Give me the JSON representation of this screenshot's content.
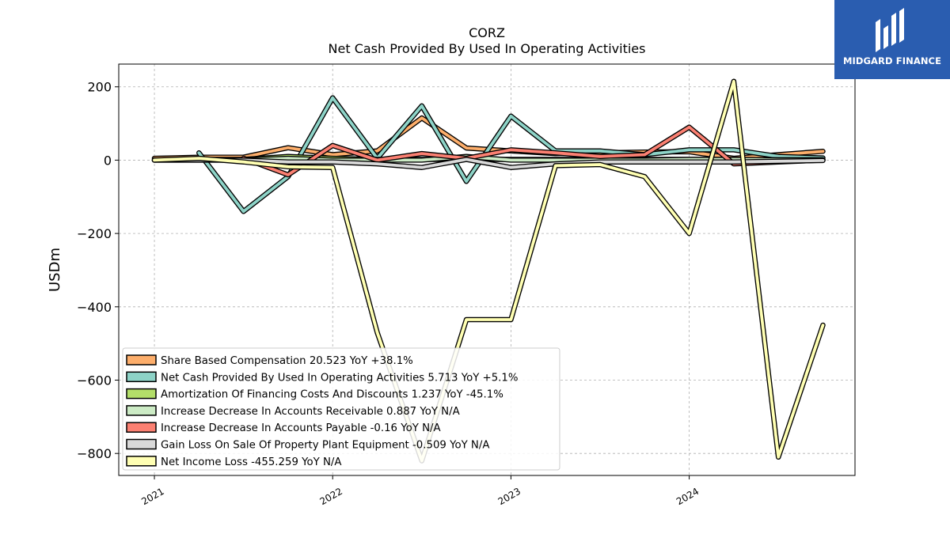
{
  "brand": {
    "name": "MIDGARD FINANCE",
    "bg_color": "#2a5db0"
  },
  "chart_data": {
    "type": "line",
    "title": "CORZ",
    "subtitle": "Net Cash Provided By Used In Operating Activities",
    "ylabel": "USDm",
    "xlabel": "",
    "ylim": [
      -860,
      262
    ],
    "xlim": [
      2020.8,
      2024.93
    ],
    "y_ticks": [
      200,
      0,
      -200,
      -400,
      -600,
      -800
    ],
    "y_tick_labels": [
      "200",
      "0",
      "−200",
      "−400",
      "−600",
      "−800"
    ],
    "x_ticks": [
      2021,
      2022,
      2023,
      2024
    ],
    "x_tick_labels": [
      "2021",
      "2022",
      "2023",
      "2024"
    ],
    "grid": true,
    "legend_position": "lower-left",
    "x": [
      2021.0,
      2021.25,
      2021.5,
      2021.75,
      2022.0,
      2022.25,
      2022.5,
      2022.75,
      2023.0,
      2023.25,
      2023.5,
      2023.75,
      2024.0,
      2024.25,
      2024.5,
      2024.75
    ],
    "series": [
      {
        "name": "Share Based Compensation  20.523 YoY +38.1%",
        "color": "#fdae6b",
        "values": [
          5,
          8,
          8,
          34,
          15,
          25,
          115,
          33,
          25,
          18,
          20,
          22,
          23,
          5,
          15,
          24
        ]
      },
      {
        "name": "Net Cash Provided By Used In Operating Activities  5.713 YoY +5.1%",
        "color": "#8dd3c7",
        "values": [
          null,
          20,
          -140,
          -45,
          170,
          5,
          148,
          -58,
          120,
          25,
          25,
          15,
          28,
          28,
          10,
          6
        ]
      },
      {
        "name": "Amortization Of Financing Costs And Discounts  1.237 YoY -45.1%",
        "color": "#b3de69",
        "values": [
          0,
          2,
          2,
          10,
          5,
          2,
          2,
          2,
          2,
          2,
          2,
          2,
          2,
          2,
          1,
          1
        ]
      },
      {
        "name": "Increase Decrease In Accounts Receivable  0.887 YoY N/A",
        "color": "#ccebc5",
        "values": [
          0,
          0,
          0,
          5,
          0,
          0,
          0,
          10,
          0,
          0,
          0,
          0,
          2,
          2,
          1,
          1
        ]
      },
      {
        "name": "Increase Decrease In Accounts Payable  -0.16 YoY N/A",
        "color": "#fb8072",
        "values": [
          null,
          null,
          5,
          -40,
          40,
          0,
          18,
          5,
          28,
          20,
          10,
          15,
          90,
          -10,
          -5,
          0
        ]
      },
      {
        "name": "Gain Loss On Sale Of Property Plant Equipment  -0.509 YoY N/A",
        "color": "#d9d9d9",
        "values": [
          0,
          0,
          0,
          -5,
          -5,
          -10,
          -20,
          2,
          -20,
          -10,
          -5,
          -5,
          -5,
          -5,
          -3,
          -1
        ]
      },
      {
        "name": "Net Income Loss  -455.259 YoY N/A",
        "color": "#ffffb3",
        "values": [
          0,
          5,
          -5,
          -18,
          -20,
          -470,
          -820,
          -435,
          -435,
          -15,
          -12,
          -45,
          -200,
          215,
          -810,
          -450
        ]
      }
    ]
  }
}
